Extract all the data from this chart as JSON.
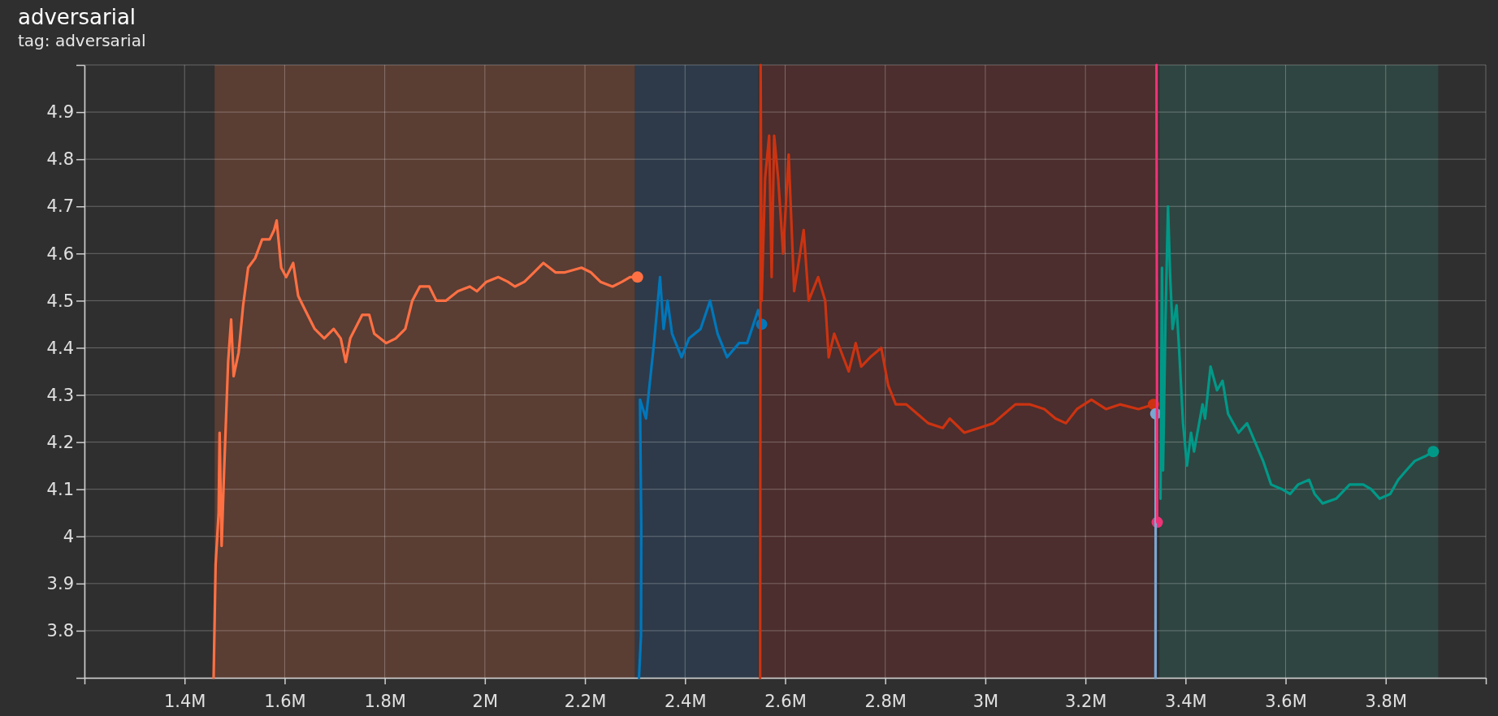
{
  "chart_data": {
    "type": "line",
    "title": "adversarial",
    "subtitle": "tag: adversarial",
    "xlim": [
      1200000,
      4000000
    ],
    "xticks": [
      {
        "value": 1200000,
        "label": null
      },
      {
        "value": 1400000,
        "label": "1.4M"
      },
      {
        "value": 1600000,
        "label": "1.6M"
      },
      {
        "value": 1800000,
        "label": "1.8M"
      },
      {
        "value": 2000000,
        "label": "2M"
      },
      {
        "value": 2200000,
        "label": "2.2M"
      },
      {
        "value": 2400000,
        "label": "2.4M"
      },
      {
        "value": 2600000,
        "label": "2.6M"
      },
      {
        "value": 2800000,
        "label": "2.8M"
      },
      {
        "value": 3000000,
        "label": "3M"
      },
      {
        "value": 3200000,
        "label": "3.2M"
      },
      {
        "value": 3400000,
        "label": "3.4M"
      },
      {
        "value": 3600000,
        "label": "3.6M"
      },
      {
        "value": 3800000,
        "label": "3.8M"
      },
      {
        "value": 4000000,
        "label": null
      }
    ],
    "ylim": [
      3.7,
      5.0
    ],
    "yticks": [
      {
        "value": 3.7,
        "label": null
      },
      3.8,
      3.9,
      4,
      4.1,
      4.2,
      4.3,
      4.4,
      4.5,
      4.6,
      4.7,
      4.8,
      4.9,
      {
        "value": 5.0,
        "label": null
      }
    ],
    "grid": true,
    "line_style": "solid",
    "bands": [
      {
        "axis": "x",
        "from": 1460000,
        "to": 2300000,
        "color": "#5a3d33"
      },
      {
        "axis": "x",
        "from": 2300000,
        "to": 2546000,
        "color": "#2e3a49"
      },
      {
        "axis": "x",
        "from": 2551000,
        "to": 3341000,
        "color": "#4b2e2d"
      },
      {
        "axis": "x",
        "from": 3348000,
        "to": 3905000,
        "color": "#2f4541"
      }
    ],
    "series": [
      {
        "color": "#ff7043",
        "x": [
          1458000,
          1462000,
          1468000,
          1470000,
          1474000,
          1479000,
          1487000,
          1493000,
          1498000,
          1508000,
          1517000,
          1527000,
          1541000,
          1555000,
          1570000,
          1579000,
          1584000,
          1593000,
          1603000,
          1617000,
          1627000,
          1641000,
          1660000,
          1679000,
          1698000,
          1712000,
          1722000,
          1731000,
          1755000,
          1769000,
          1779000,
          1803000,
          1822000,
          1841000,
          1855000,
          1870000,
          1889000,
          1903000,
          1922000,
          1946000,
          1970000,
          1984000,
          2003000,
          2027000,
          2046000,
          2060000,
          2079000,
          2098000,
          2117000,
          2141000,
          2160000,
          2193000,
          2212000,
          2231000,
          2255000,
          2274000,
          2290000,
          2305000
        ],
        "values": [
          3.7,
          3.94,
          4.05,
          4.22,
          3.98,
          4.14,
          4.37,
          4.46,
          4.34,
          4.39,
          4.49,
          4.57,
          4.59,
          4.63,
          4.63,
          4.65,
          4.67,
          4.57,
          4.55,
          4.58,
          4.51,
          4.48,
          4.44,
          4.42,
          4.44,
          4.42,
          4.37,
          4.42,
          4.47,
          4.47,
          4.43,
          4.41,
          4.42,
          4.44,
          4.5,
          4.53,
          4.53,
          4.5,
          4.5,
          4.52,
          4.53,
          4.52,
          4.54,
          4.55,
          4.54,
          4.53,
          4.54,
          4.56,
          4.58,
          4.56,
          4.56,
          4.57,
          4.56,
          4.54,
          4.53,
          4.54,
          4.55,
          4.55
        ]
      },
      {
        "color": "#0077bb",
        "x": [
          2308000,
          2312000,
          2312500,
          2310000,
          2322000,
          2328000,
          2338000,
          2350000,
          2357000,
          2365000,
          2374000,
          2393000,
          2408000,
          2431000,
          2450000,
          2465000,
          2484000,
          2508000,
          2524000,
          2546000,
          2553000
        ],
        "values": [
          3.7,
          3.79,
          4.02,
          4.29,
          4.25,
          4.31,
          4.41,
          4.55,
          4.44,
          4.5,
          4.43,
          4.38,
          4.42,
          4.44,
          4.5,
          4.43,
          4.38,
          4.41,
          4.41,
          4.48,
          4.45
        ]
      },
      {
        "color": "#cc3311",
        "x": [
          2550000,
          2551000,
          2553000,
          2560000,
          2568000,
          2573000,
          2578000,
          2586000,
          2596000,
          2607000,
          2618000,
          2637000,
          2647000,
          2666000,
          2680000,
          2687000,
          2698000,
          2727000,
          2741000,
          2752000,
          2770000,
          2792000,
          2806000,
          2821000,
          2842000,
          2864000,
          2886000,
          2915000,
          2929000,
          2958000,
          2987000,
          3016000,
          3038000,
          3060000,
          3089000,
          3118000,
          3140000,
          3161000,
          3183000,
          3212000,
          3241000,
          3269000,
          3306000,
          3336000
        ],
        "values": [
          3.7,
          5.0,
          4.5,
          4.76,
          4.85,
          4.55,
          4.85,
          4.76,
          4.6,
          4.81,
          4.52,
          4.65,
          4.5,
          4.55,
          4.5,
          4.38,
          4.43,
          4.35,
          4.41,
          4.36,
          4.38,
          4.4,
          4.32,
          4.28,
          4.28,
          4.26,
          4.24,
          4.23,
          4.25,
          4.22,
          4.23,
          4.24,
          4.26,
          4.28,
          4.28,
          4.27,
          4.25,
          4.24,
          4.27,
          4.29,
          4.27,
          4.28,
          4.27,
          4.28
        ]
      },
      {
        "color": "#7aa6d2",
        "x": [
          3340000,
          3340500
        ],
        "values": [
          3.7,
          4.26
        ]
      },
      {
        "color": "#ee3377",
        "x": [
          3342000,
          3343500
        ],
        "values": [
          5.0,
          4.03
        ]
      },
      {
        "color": "#009988",
        "x": [
          3350000,
          3353000,
          3355000,
          3360000,
          3365000,
          3369000,
          3374000,
          3382000,
          3387000,
          3395000,
          3403000,
          3411000,
          3417000,
          3434000,
          3439000,
          3450000,
          3463000,
          3474000,
          3485000,
          3506000,
          3523000,
          3539000,
          3555000,
          3571000,
          3593000,
          3609000,
          3625000,
          3647000,
          3658000,
          3674000,
          3701000,
          3728000,
          3755000,
          3771000,
          3788000,
          3809000,
          3825000,
          3841000,
          3858000,
          3879000,
          3895000
        ],
        "values": [
          4.08,
          4.57,
          4.14,
          4.46,
          4.7,
          4.56,
          4.44,
          4.49,
          4.4,
          4.24,
          4.15,
          4.22,
          4.18,
          4.28,
          4.25,
          4.36,
          4.31,
          4.33,
          4.26,
          4.22,
          4.24,
          4.2,
          4.16,
          4.11,
          4.1,
          4.09,
          4.11,
          4.12,
          4.09,
          4.07,
          4.08,
          4.11,
          4.11,
          4.1,
          4.08,
          4.09,
          4.12,
          4.14,
          4.16,
          4.17,
          4.18
        ]
      }
    ]
  }
}
